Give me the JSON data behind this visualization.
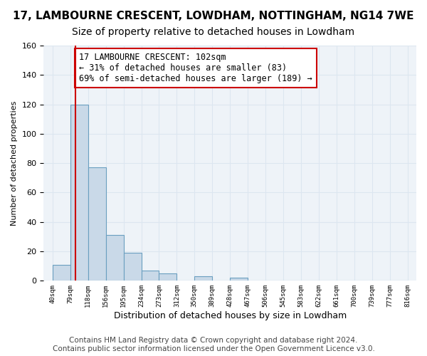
{
  "title": "17, LAMBOURNE CRESCENT, LOWDHAM, NOTTINGHAM, NG14 7WE",
  "subtitle": "Size of property relative to detached houses in Lowdham",
  "xlabel": "Distribution of detached houses by size in Lowdham",
  "ylabel": "Number of detached properties",
  "bar_values": [
    11,
    120,
    77,
    31,
    19,
    7,
    5,
    0,
    3,
    0,
    2,
    0,
    0,
    0,
    0,
    0,
    0,
    0,
    0,
    0
  ],
  "bin_labels": [
    "40sqm",
    "79sqm",
    "118sqm",
    "156sqm",
    "195sqm",
    "234sqm",
    "273sqm",
    "312sqm",
    "350sqm",
    "389sqm",
    "428sqm",
    "467sqm",
    "506sqm",
    "545sqm",
    "583sqm",
    "622sqm",
    "661sqm",
    "700sqm",
    "739sqm",
    "777sqm",
    "816sqm"
  ],
  "bar_color": "#c9d9e8",
  "bar_edge_color": "#6a9fc0",
  "grid_color": "#dce6f0",
  "background_color": "#eef3f8",
  "vline_color": "#cc0000",
  "vline_x": 1.3,
  "annotation_text": "17 LAMBOURNE CRESCENT: 102sqm\n← 31% of detached houses are smaller (83)\n69% of semi-detached houses are larger (189) →",
  "annotation_box_color": "white",
  "annotation_box_edge_color": "#cc0000",
  "ylim": [
    0,
    160
  ],
  "yticks": [
    0,
    20,
    40,
    60,
    80,
    100,
    120,
    140,
    160
  ],
  "footer_text": "Contains HM Land Registry data © Crown copyright and database right 2024.\nContains public sector information licensed under the Open Government Licence v3.0.",
  "title_fontsize": 11,
  "subtitle_fontsize": 10,
  "annotation_fontsize": 8.5,
  "footer_fontsize": 7.5
}
